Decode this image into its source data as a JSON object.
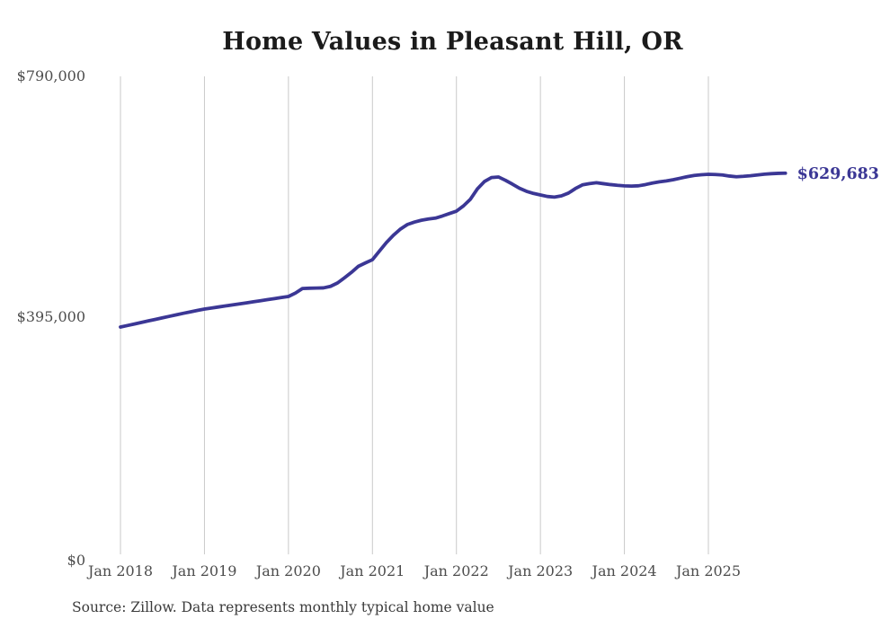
{
  "title": "Home Values in Pleasant Hill, OR",
  "source_note": "Source: Zillow. Data represents monthly typical home value",
  "end_label": "$629,683",
  "colors": {
    "line": "#3b3795",
    "end_label": "#3b3795",
    "grid": "#c9c9c9",
    "axis_text": "#4d4d4d",
    "title_text": "#1b1b1b",
    "background": "#ffffff"
  },
  "chart_data": {
    "type": "line",
    "title": "Home Values in Pleasant Hill, OR",
    "series_name": "Typical home value (monthly, Zillow)",
    "x_start": "Jan 2018",
    "x_end": "Dec 2025",
    "x_interval": "monthly",
    "x_tick_labels": [
      "Jan 2018",
      "Jan 2019",
      "Jan 2020",
      "Jan 2021",
      "Jan 2022",
      "Jan 2023",
      "Jan 2024",
      "Jan 2025"
    ],
    "y_ticks": [
      0,
      395000,
      790000
    ],
    "y_tick_labels": [
      "$0",
      "$395,000",
      "$790,000"
    ],
    "ylim": [
      0,
      790000
    ],
    "grid": "vertical-only",
    "legend": "none",
    "final_value": 629683,
    "final_value_label": "$629,683",
    "values": [
      377300,
      379800,
      382300,
      384900,
      387400,
      389900,
      392400,
      394900,
      397400,
      399900,
      402200,
      404500,
      406800,
      408500,
      410200,
      411900,
      413600,
      415300,
      417000,
      418800,
      420500,
      422200,
      424000,
      425700,
      427400,
      433000,
      440500,
      441000,
      441200,
      441500,
      444000,
      449500,
      458000,
      467000,
      477000,
      482500,
      487800,
      502000,
      516000,
      528000,
      538000,
      545500,
      549500,
      552500,
      554500,
      556000,
      559500,
      563500,
      567400,
      576000,
      587000,
      604000,
      616000,
      622500,
      623500,
      618000,
      611700,
      605000,
      600000,
      596500,
      594000,
      591500,
      590500,
      592500,
      597000,
      604500,
      610500,
      612600,
      614000,
      612500,
      611000,
      609800,
      608900,
      608500,
      609000,
      611000,
      613500,
      615600,
      617000,
      619000,
      621500,
      624000,
      626000,
      627200,
      627900,
      627500,
      626800,
      625000,
      623800,
      624500,
      625500,
      626800,
      628000,
      628900,
      629400,
      629683
    ]
  }
}
